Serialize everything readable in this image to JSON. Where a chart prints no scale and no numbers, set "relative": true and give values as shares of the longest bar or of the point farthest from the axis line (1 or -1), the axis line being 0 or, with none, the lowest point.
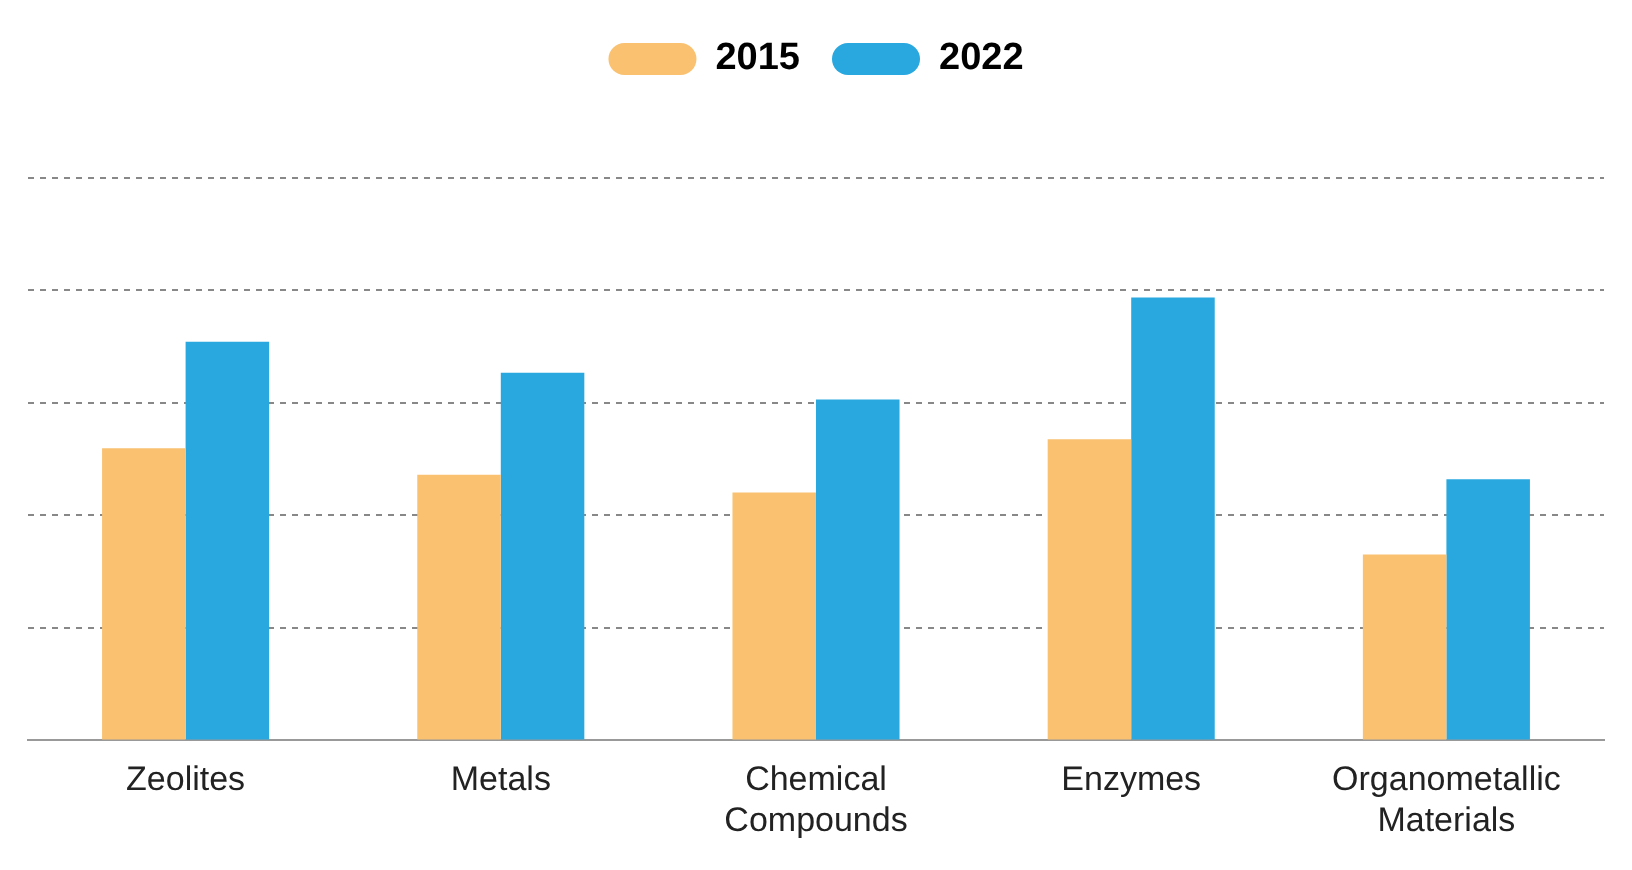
{
  "chart_data": {
    "type": "bar",
    "relative": true,
    "categories": [
      "Zeolites",
      "Metals",
      "Chemical Compounds",
      "Enzymes",
      "Organometallic Materials"
    ],
    "series": [
      {
        "name": "2015",
        "color": "#f9c170",
        "values": [
          0.66,
          0.6,
          0.56,
          0.68,
          0.42
        ]
      },
      {
        "name": "2022",
        "color": "#29a8e0",
        "values": [
          0.9,
          0.83,
          0.77,
          1,
          0.59
        ]
      }
    ],
    "grid": "y",
    "legend": "top"
  }
}
